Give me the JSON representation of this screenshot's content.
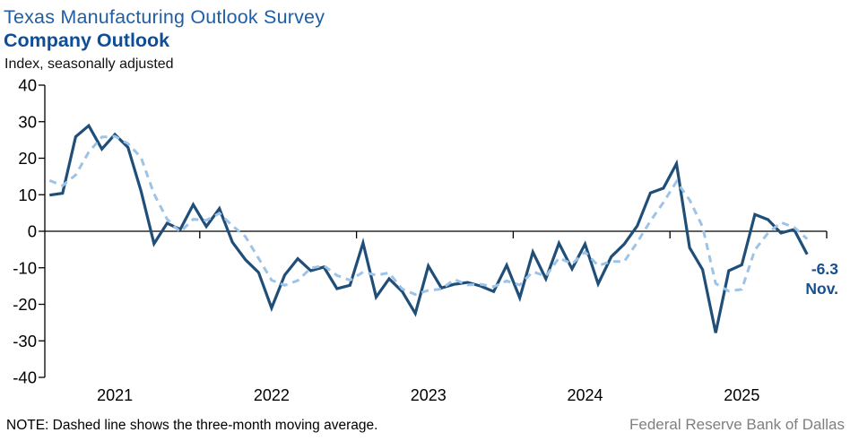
{
  "header": {
    "title": "Texas Manufacturing Outlook Survey",
    "subtitle": "Company Outlook",
    "axis_units": "Index, seasonally adjusted"
  },
  "footer": {
    "note": "NOTE: Dashed line shows the three-month moving average.",
    "source": "Federal Reserve Bank of Dallas"
  },
  "colors": {
    "title": "#1e5fa6",
    "subtitle": "#0e4d97",
    "index_line": "#1f4e79",
    "moving_avg_line": "#9dc3e6",
    "annotation": "#17508f",
    "axis": "#000000",
    "source_text": "#7f7f7f"
  },
  "chart_data": {
    "type": "line",
    "title": "Company Outlook",
    "ylabel": "Index, seasonally adjusted",
    "ylim": [
      -40,
      40
    ],
    "yticks": [
      40,
      30,
      20,
      10,
      0,
      -10,
      -20,
      -30,
      -40
    ],
    "grid": false,
    "legend_position": "none",
    "x_monthly_from": "2021-01",
    "x_monthly_to": "2025-11",
    "year_labels": [
      "2021",
      "2022",
      "2023",
      "2024",
      "2025"
    ],
    "series": [
      {
        "name": "Company outlook index",
        "style": "solid",
        "color": "#1f4e79",
        "values": [
          9.9,
          10.4,
          25.9,
          28.9,
          22.5,
          26.5,
          23.0,
          11.0,
          -3.4,
          2.2,
          0.5,
          7.3,
          1.3,
          6.2,
          -3.0,
          -7.8,
          -11.3,
          -21.0,
          -12.0,
          -7.5,
          -10.8,
          -9.8,
          -15.7,
          -14.8,
          -3.2,
          -18.0,
          -13.0,
          -16.5,
          -22.5,
          -9.5,
          -15.5,
          -14.5,
          -14.0,
          -15.0,
          -16.5,
          -9.3,
          -18.2,
          -5.7,
          -13.0,
          -3.3,
          -10.3,
          -3.5,
          -14.4,
          -7.0,
          -3.5,
          1.5,
          10.5,
          11.8,
          18.5,
          -4.5,
          -10.5,
          -27.8,
          -10.8,
          -9.2,
          4.6,
          3.2,
          -0.5,
          0.5,
          -6.3
        ]
      },
      {
        "name": "Three-month moving average",
        "style": "dashed",
        "color": "#9dc3e6",
        "values": [
          13.9,
          12.5,
          15.4,
          21.7,
          25.8,
          26.0,
          24.0,
          20.2,
          10.2,
          3.3,
          -0.2,
          3.3,
          3.0,
          4.9,
          1.5,
          -1.5,
          -7.4,
          -13.4,
          -14.8,
          -13.5,
          -10.1,
          -9.4,
          -12.1,
          -13.4,
          -11.2,
          -12.0,
          -11.4,
          -15.8,
          -17.3,
          -16.2,
          -15.8,
          -13.2,
          -14.7,
          -14.5,
          -15.2,
          -13.6,
          -14.7,
          -11.1,
          -12.3,
          -7.3,
          -8.9,
          -5.7,
          -9.4,
          -8.3,
          -8.3,
          -3.0,
          2.8,
          7.9,
          13.6,
          8.6,
          1.2,
          -14.3,
          -16.4,
          -15.9,
          -5.1,
          -0.5,
          2.4,
          1.1,
          -2.1
        ]
      }
    ],
    "annotation": {
      "value_label": "-6.3",
      "month_label": "Nov."
    }
  }
}
